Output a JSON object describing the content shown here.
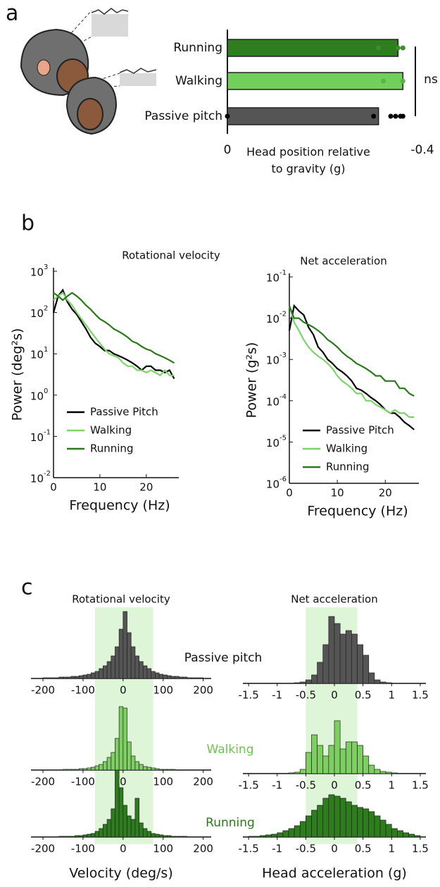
{
  "panel_labels": [
    "a",
    "b",
    "c"
  ],
  "chart_data": [
    {
      "type": "hbar",
      "categories": [
        "Running",
        "Walking",
        "Passive pitch"
      ],
      "values": [
        -0.35,
        -0.36,
        -0.31
      ],
      "colors": [
        "#2e7d1f",
        "#72cf5b",
        "#555555"
      ],
      "points": [
        [
          -0.31,
          -0.35,
          -0.36
        ],
        [
          -0.32,
          -0.36
        ],
        [
          0,
          -0.3,
          -0.335,
          -0.345,
          -0.355,
          -0.36
        ]
      ],
      "point_colors": [
        "#3a8f2a",
        "#5fb24a",
        "#000000"
      ],
      "xlim": [
        0,
        -0.4
      ],
      "xticks": [
        0,
        -0.4
      ],
      "xlabel": "Head position relative to gravity (g)",
      "annotation": "ns"
    },
    {
      "type": "line",
      "title": "Rotational velocity",
      "xlabel": "Frequency (Hz)",
      "ylabel": "Power (deg²s)",
      "log_y": true,
      "xlim": [
        0,
        27
      ],
      "xticks": [
        0,
        10,
        20
      ],
      "ylim": [
        0.01,
        1000
      ],
      "yticks": [
        {
          "value": 0.01,
          "label": "10",
          "exponent": "-2"
        },
        {
          "value": 0.1,
          "label": "10",
          "exponent": "-1"
        },
        {
          "value": 1,
          "label": "10",
          "exponent": "0"
        },
        {
          "value": 10,
          "label": "10",
          "exponent": "1"
        },
        {
          "value": 100,
          "label": "10",
          "exponent": "2"
        },
        {
          "value": 1000,
          "label": "10",
          "exponent": "3"
        }
      ],
      "legend": "lower left",
      "x": [
        0,
        1,
        2,
        3,
        4,
        5,
        6,
        7,
        8,
        9,
        10,
        11,
        12,
        13,
        14,
        15,
        16,
        17,
        18,
        19,
        20,
        21,
        22,
        23,
        24,
        25,
        26
      ],
      "series": [
        {
          "name": "Passive Pitch",
          "color": "#000000",
          "values": [
            100,
            250,
            350,
            180,
            120,
            90,
            60,
            40,
            25,
            18,
            15,
            12,
            12,
            10,
            9,
            8,
            7,
            6,
            5,
            4,
            5,
            5,
            4,
            4,
            3.5,
            4,
            2.5
          ]
        },
        {
          "name": "Walking",
          "color": "#7ed46a",
          "values": [
            200,
            250,
            300,
            200,
            150,
            100,
            70,
            50,
            35,
            25,
            18,
            13,
            10,
            9,
            8,
            6,
            5,
            5,
            4,
            4,
            3.5,
            4,
            3.5,
            3,
            4,
            3,
            3
          ]
        },
        {
          "name": "Running",
          "color": "#2a7a1a",
          "values": [
            300,
            250,
            200,
            250,
            300,
            250,
            200,
            150,
            120,
            90,
            70,
            60,
            50,
            40,
            35,
            30,
            25,
            20,
            18,
            15,
            13,
            12,
            10,
            9,
            8,
            7,
            6
          ]
        }
      ]
    },
    {
      "type": "line",
      "title": "Net acceleration",
      "xlabel": "Frequency (Hz)",
      "ylabel": "Power (g²s)",
      "log_y": true,
      "xlim": [
        0,
        27
      ],
      "xticks": [
        0,
        10,
        20
      ],
      "ylim": [
        1e-06,
        0.1
      ],
      "yticks": [
        {
          "value": 1e-06,
          "label": "10",
          "exponent": "-6"
        },
        {
          "value": 1e-05,
          "label": "10",
          "exponent": "-5"
        },
        {
          "value": 0.0001,
          "label": "10",
          "exponent": "-4"
        },
        {
          "value": 0.001,
          "label": "10",
          "exponent": "-3"
        },
        {
          "value": 0.01,
          "label": "10",
          "exponent": "-2"
        },
        {
          "value": 0.1,
          "label": "10",
          "exponent": "-1"
        }
      ],
      "legend": "lower left",
      "x": [
        0,
        1,
        2,
        3,
        4,
        5,
        6,
        7,
        8,
        9,
        10,
        11,
        12,
        13,
        14,
        15,
        16,
        17,
        18,
        19,
        20,
        21,
        22,
        23,
        24,
        25,
        26
      ],
      "series": [
        {
          "name": "Passive Pitch",
          "color": "#000000",
          "values": [
            0.005,
            0.02,
            0.015,
            0.012,
            0.006,
            0.004,
            0.002,
            0.0015,
            0.001,
            0.0008,
            0.0006,
            0.0005,
            0.0004,
            0.0003,
            0.0002,
            0.00018,
            0.00015,
            0.00012,
            0.0001,
            8e-05,
            6e-05,
            5e-05,
            5e-05,
            4e-05,
            3e-05,
            2.5e-05,
            2e-05
          ]
        },
        {
          "name": "Walking",
          "color": "#7ed46a",
          "values": [
            0.02,
            0.008,
            0.005,
            0.003,
            0.002,
            0.0015,
            0.0012,
            0.001,
            0.0008,
            0.0006,
            0.0004,
            0.0003,
            0.00025,
            0.0002,
            0.00015,
            0.00015,
            0.0001,
            0.0001,
            8e-05,
            7e-05,
            6e-05,
            5e-05,
            6e-05,
            5e-05,
            5e-05,
            4e-05,
            4e-05
          ]
        },
        {
          "name": "Running",
          "color": "#2a7a1a",
          "values": [
            0.02,
            0.01,
            0.01,
            0.008,
            0.007,
            0.006,
            0.005,
            0.004,
            0.003,
            0.0025,
            0.002,
            0.0015,
            0.0012,
            0.001,
            0.0008,
            0.0007,
            0.0006,
            0.0005,
            0.0004,
            0.0004,
            0.0003,
            0.0003,
            0.0003,
            0.0002,
            0.0002,
            0.00015,
            0.00013
          ]
        }
      ]
    },
    {
      "type": "histogram",
      "title": "Rotational velocity",
      "xlabel": "Velocity (deg/s)",
      "xlim": [
        -230,
        220
      ],
      "xticks": [
        -200,
        -100,
        0,
        100,
        200
      ],
      "ylim": [
        0,
        100
      ],
      "shaded_range": [
        -70,
        75
      ],
      "shade_color": "#dff5d8",
      "bins": [
        -200,
        -190,
        -180,
        -170,
        -160,
        -150,
        -140,
        -130,
        -120,
        -110,
        -100,
        -90,
        -80,
        -70,
        -60,
        -50,
        -40,
        -30,
        -20,
        -10,
        0,
        10,
        20,
        30,
        40,
        50,
        60,
        70,
        80,
        90,
        100,
        110,
        120,
        130,
        140,
        150,
        160,
        170,
        180,
        190,
        200
      ],
      "series": [
        {
          "name": "Passive pitch",
          "color": "#555555",
          "values": [
            1,
            1,
            1,
            1,
            2,
            2,
            2,
            3,
            3,
            4,
            5,
            6,
            8,
            10,
            14,
            18,
            24,
            32,
            45,
            70,
            95,
            65,
            45,
            32,
            24,
            18,
            14,
            10,
            8,
            6,
            5,
            4,
            3,
            3,
            2,
            2,
            1,
            1,
            1,
            1
          ]
        },
        {
          "name": "Walking",
          "color": "#7ccf60",
          "values": [
            0,
            0,
            0,
            0,
            0,
            1,
            1,
            1,
            1,
            2,
            2,
            3,
            4,
            6,
            8,
            12,
            18,
            25,
            45,
            90,
            88,
            40,
            20,
            12,
            8,
            5,
            4,
            3,
            2,
            1,
            1,
            1,
            1,
            0,
            0,
            0,
            0,
            0,
            0,
            0
          ]
        },
        {
          "name": "Running",
          "color": "#2d7d1d",
          "values": [
            0,
            0,
            0,
            0,
            1,
            1,
            1,
            1,
            2,
            2,
            3,
            4,
            5,
            8,
            12,
            18,
            25,
            40,
            95,
            70,
            45,
            30,
            25,
            55,
            20,
            12,
            8,
            5,
            4,
            3,
            2,
            2,
            1,
            1,
            1,
            1,
            0,
            0,
            0,
            0
          ]
        }
      ]
    },
    {
      "type": "histogram",
      "title": "Net acceleration",
      "xlabel": "Head acceleration (g)",
      "xlim": [
        -1.6,
        1.6
      ],
      "xticks": [
        -1.5,
        -1,
        -0.5,
        0,
        0.5,
        1,
        1.5
      ],
      "ylim": [
        0,
        100
      ],
      "shaded_range": [
        -0.5,
        0.4
      ],
      "shade_color": "#dff5d8",
      "bins": [
        -1.5,
        -1.4,
        -1.3,
        -1.2,
        -1.1,
        -1,
        -0.9,
        -0.8,
        -0.7,
        -0.6,
        -0.5,
        -0.4,
        -0.3,
        -0.2,
        -0.1,
        0,
        0.1,
        0.2,
        0.3,
        0.4,
        0.5,
        0.6,
        0.7,
        0.8,
        0.9,
        1,
        1.1,
        1.2,
        1.3,
        1.4,
        1.5
      ],
      "series": [
        {
          "color": "#555555",
          "values": [
            0,
            0,
            0,
            0,
            0,
            0,
            0,
            0,
            1,
            2,
            5,
            12,
            30,
            55,
            95,
            85,
            70,
            75,
            70,
            55,
            40,
            15,
            5,
            2,
            1,
            0,
            0,
            0,
            0,
            0
          ]
        },
        {
          "color": "#7ccf60",
          "values": [
            0,
            0,
            0,
            0,
            0,
            0,
            0,
            1,
            2,
            6,
            30,
            55,
            40,
            25,
            40,
            75,
            35,
            45,
            45,
            40,
            25,
            12,
            6,
            3,
            2,
            1,
            0,
            0,
            0,
            0
          ]
        },
        {
          "color": "#2d7d1d",
          "values": [
            1,
            1,
            2,
            3,
            4,
            6,
            9,
            12,
            16,
            22,
            30,
            38,
            45,
            55,
            60,
            58,
            55,
            50,
            45,
            42,
            40,
            36,
            30,
            24,
            18,
            12,
            9,
            6,
            4,
            2
          ]
        }
      ]
    }
  ]
}
